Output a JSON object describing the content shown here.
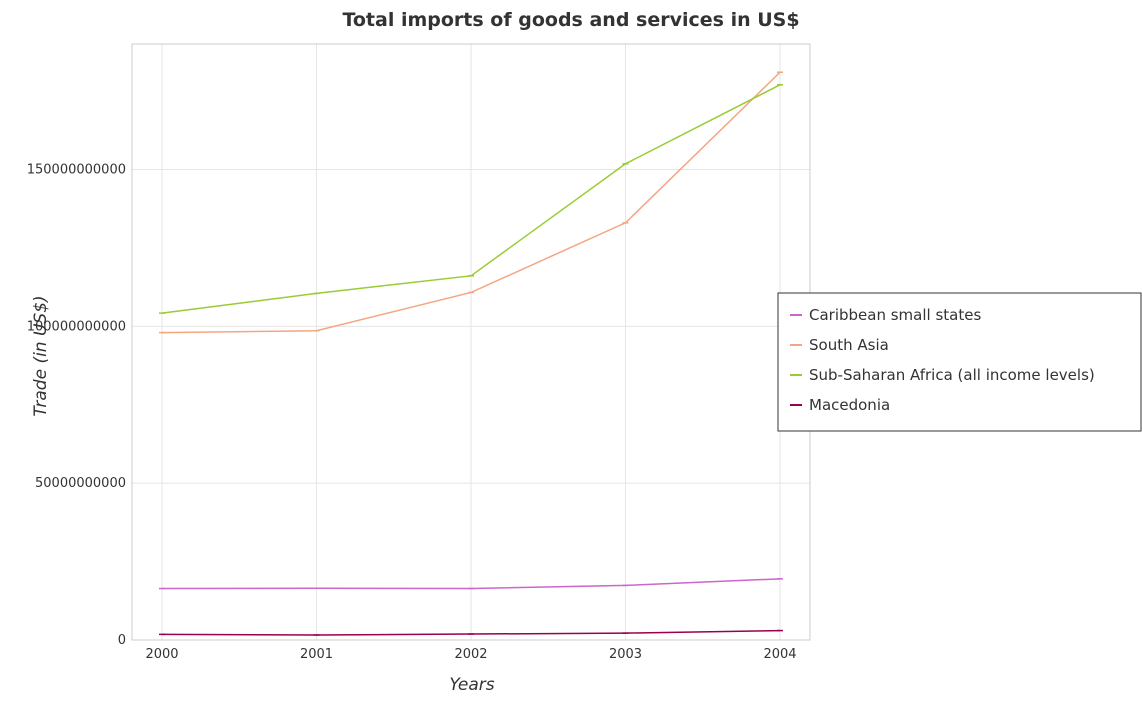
{
  "chart_data": {
    "type": "line",
    "title": "Total imports of goods and services in US$",
    "xlabel": "Years",
    "ylabel": "Trade (in US$)",
    "x": [
      "2000",
      "2001",
      "2002",
      "2003",
      "2004"
    ],
    "ylim": [
      0,
      190000000000
    ],
    "y_ticks": [
      0,
      50000000000,
      100000000000,
      150000000000
    ],
    "y_tick_labels": [
      "0",
      "50000000000",
      "100000000000",
      "150000000000"
    ],
    "grid": true,
    "legend_position": "right",
    "series": [
      {
        "name": "Caribbean small states",
        "color": "#cc66cc",
        "values": [
          16400000000,
          16500000000,
          16400000000,
          17400000000,
          19500000000
        ]
      },
      {
        "name": "South Asia",
        "color": "#f4a582",
        "values": [
          98000000000,
          98600000000,
          110800000000,
          133000000000,
          181000000000
        ]
      },
      {
        "name": "Sub-Saharan Africa (all income levels)",
        "color": "#99cc33",
        "values": [
          104200000000,
          110500000000,
          116100000000,
          151800000000,
          177000000000
        ]
      },
      {
        "name": "Macedonia",
        "color": "#99004d",
        "values": [
          1800000000,
          1600000000,
          1900000000,
          2200000000,
          3000000000
        ]
      }
    ]
  }
}
